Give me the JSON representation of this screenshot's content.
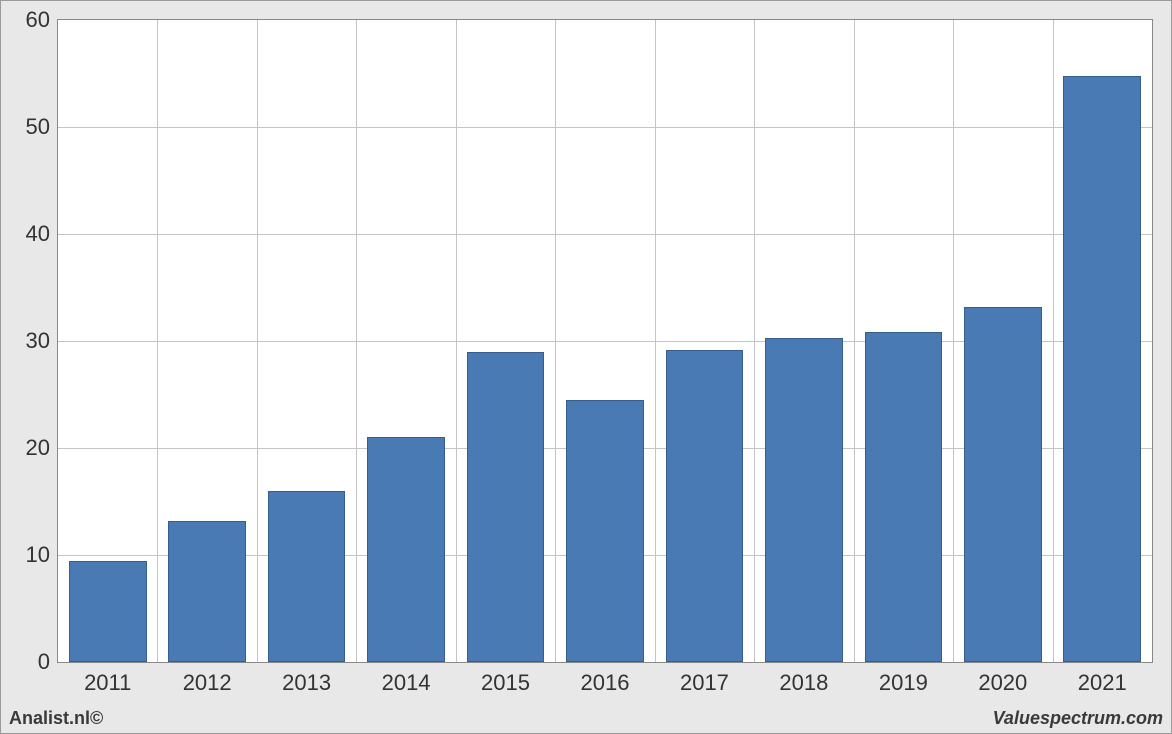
{
  "chart": {
    "type": "bar",
    "categories": [
      "2011",
      "2012",
      "2013",
      "2014",
      "2015",
      "2016",
      "2017",
      "2018",
      "2019",
      "2020",
      "2021"
    ],
    "values": [
      9.4,
      13.2,
      16.0,
      21.0,
      29.0,
      24.5,
      29.2,
      30.3,
      30.8,
      33.2,
      54.8
    ],
    "bar_fill": "#4a7ab4",
    "bar_border": "#355e8c",
    "bar_width_ratio": 0.78,
    "background_color": "#ffffff",
    "outer_background": "#e8e8e8",
    "grid_color": "#c4c4c4",
    "axis_color": "#888888",
    "ylim": [
      0,
      60
    ],
    "ytick_step": 10,
    "tick_fontsize": 22,
    "tick_color": "#333333"
  },
  "footer": {
    "left": "Analist.nl©",
    "right": "Valuespectrum.com",
    "fontsize": 18,
    "color": "#3a3a3a"
  }
}
